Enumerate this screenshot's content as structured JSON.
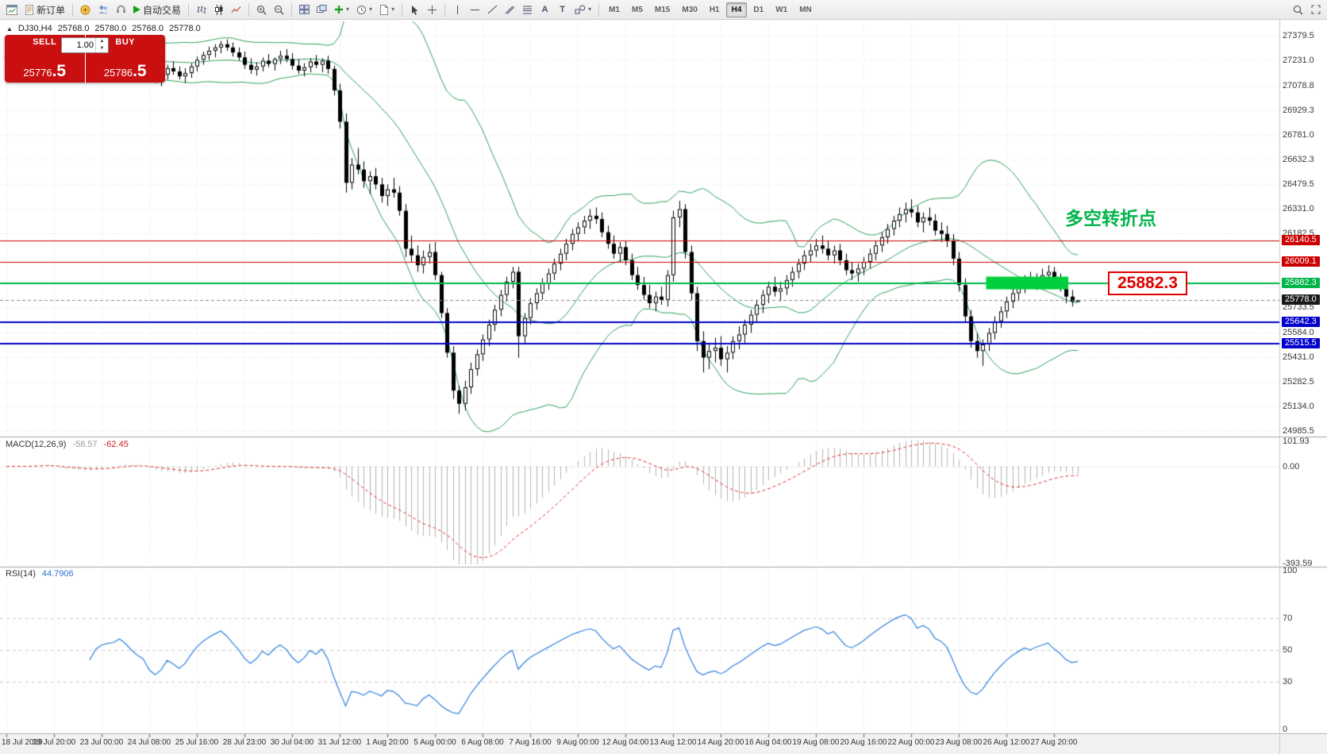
{
  "toolbar": {
    "new_order_label": "新订单",
    "autotrading_label": "自动交易",
    "timeframes": [
      "M1",
      "M5",
      "M15",
      "M30",
      "H1",
      "H4",
      "D1",
      "W1",
      "MN"
    ],
    "active_timeframe": "H4"
  },
  "symbol_info": {
    "symbol": "DJ30,H4",
    "open": "25768.0",
    "high": "25780.0",
    "low": "25768.0",
    "close": "25778.0"
  },
  "trade_panel": {
    "sell_label": "SELL",
    "buy_label": "BUY",
    "volume": "1.00",
    "sell_main": "25776",
    "sell_pips": ".5",
    "buy_main": "25786",
    "buy_pips": ".5"
  },
  "annotations": {
    "turning_point": "多空转折点",
    "price_callout": "25882.3"
  },
  "macd": {
    "name": "MACD(12,26,9)",
    "value1": "-58.57",
    "value2": "-62.45",
    "axis": [
      "101.93",
      "0.00",
      "-393.59"
    ]
  },
  "rsi": {
    "name": "RSI(14)",
    "value": "44.7906",
    "axis": [
      "100",
      "70",
      "50",
      "30",
      "0"
    ]
  },
  "chart_data": {
    "type": "candlestick",
    "symbol": "DJ30",
    "timeframe": "H4",
    "ylim": [
      24966,
      27468
    ],
    "current_price": 25778.0,
    "price_ticks": [
      "27379.5",
      "27231.0",
      "27078.8",
      "26929.3",
      "26781.0",
      "26632.3",
      "26479.5",
      "26331.0",
      "26182.5",
      "25733.5",
      "25584.0",
      "25431.0",
      "25282.5",
      "25134.0",
      "24985.5"
    ],
    "hlines": [
      {
        "price": 26140.5,
        "color": "#cc0000",
        "width": 1
      },
      {
        "price": 26009.1,
        "color": "#cc0000",
        "width": 1
      },
      {
        "price": 25882.3,
        "color": "#00b44a",
        "width": 2
      },
      {
        "price": 25642.3,
        "color": "#0000cc",
        "width": 2
      },
      {
        "price": 25515.5,
        "color": "#0000cc",
        "width": 2
      }
    ],
    "highlight_box": {
      "price": 25882.3,
      "from_bar": 165,
      "to_bar": 178,
      "color": "#00cf3d"
    },
    "bollinger": {
      "period": 20,
      "deviation": 2,
      "color": "#2fa35f"
    },
    "time_labels": [
      "18 Jul 2019",
      "19 Jul 20:00",
      "23 Jul 00:00",
      "24 Jul 08:00",
      "25 Jul 16:00",
      "28 Jul 23:00",
      "30 Jul 04:00",
      "31 Jul 12:00",
      "1 Aug 20:00",
      "5 Aug 00:00",
      "6 Aug 08:00",
      "7 Aug 16:00",
      "9 Aug 00:00",
      "12 Aug 04:00",
      "13 Aug 12:00",
      "14 Aug 20:00",
      "16 Aug 04:00",
      "19 Aug 08:00",
      "20 Aug 16:00",
      "22 Aug 00:00",
      "23 Aug 08:00",
      "26 Aug 12:00",
      "27 Aug 20:00"
    ],
    "bars_per_tick": 8,
    "candles": [
      [
        27240,
        27280,
        27200,
        27260
      ],
      [
        27260,
        27300,
        27230,
        27280
      ],
      [
        27280,
        27320,
        27250,
        27270
      ],
      [
        27270,
        27300,
        27220,
        27240
      ],
      [
        27240,
        27280,
        27210,
        27265
      ],
      [
        27265,
        27340,
        27245,
        27320
      ],
      [
        27320,
        27355,
        27285,
        27305
      ],
      [
        27305,
        27335,
        27265,
        27285
      ],
      [
        27285,
        27295,
        27170,
        27195
      ],
      [
        27195,
        27230,
        27130,
        27160
      ],
      [
        27160,
        27210,
        27120,
        27190
      ],
      [
        27190,
        27250,
        27165,
        27230
      ],
      [
        27230,
        27260,
        27185,
        27205
      ],
      [
        27205,
        27240,
        27150,
        27180
      ],
      [
        27180,
        27225,
        27140,
        27205
      ],
      [
        27205,
        27280,
        27180,
        27260
      ],
      [
        27260,
        27310,
        27230,
        27285
      ],
      [
        27285,
        27325,
        27255,
        27295
      ],
      [
        27295,
        27330,
        27260,
        27300
      ],
      [
        27300,
        27340,
        27270,
        27320
      ],
      [
        27320,
        27355,
        27280,
        27300
      ],
      [
        27300,
        27330,
        27250,
        27270
      ],
      [
        27270,
        27300,
        27215,
        27245
      ],
      [
        27245,
        27285,
        27205,
        27225
      ],
      [
        27225,
        27255,
        27135,
        27160
      ],
      [
        27160,
        27195,
        27095,
        27125
      ],
      [
        27125,
        27175,
        27075,
        27145
      ],
      [
        27145,
        27205,
        27115,
        27185
      ],
      [
        27185,
        27225,
        27145,
        27165
      ],
      [
        27165,
        27195,
        27115,
        27135
      ],
      [
        27135,
        27185,
        27095,
        27155
      ],
      [
        27155,
        27215,
        27125,
        27195
      ],
      [
        27195,
        27255,
        27165,
        27235
      ],
      [
        27235,
        27285,
        27205,
        27265
      ],
      [
        27265,
        27315,
        27235,
        27290
      ],
      [
        27290,
        27330,
        27250,
        27310
      ],
      [
        27310,
        27350,
        27275,
        27330
      ],
      [
        27330,
        27360,
        27290,
        27310
      ],
      [
        27310,
        27340,
        27255,
        27280
      ],
      [
        27280,
        27310,
        27230,
        27250
      ],
      [
        27250,
        27285,
        27180,
        27205
      ],
      [
        27205,
        27245,
        27150,
        27175
      ],
      [
        27175,
        27220,
        27140,
        27195
      ],
      [
        27195,
        27250,
        27165,
        27230
      ],
      [
        27230,
        27270,
        27190,
        27210
      ],
      [
        27210,
        27250,
        27170,
        27240
      ],
      [
        27240,
        27290,
        27210,
        27260
      ],
      [
        27260,
        27300,
        27220,
        27240
      ],
      [
        27240,
        27275,
        27175,
        27200
      ],
      [
        27200,
        27240,
        27150,
        27170
      ],
      [
        27170,
        27215,
        27135,
        27190
      ],
      [
        27190,
        27245,
        27160,
        27225
      ],
      [
        27225,
        27265,
        27185,
        27205
      ],
      [
        27205,
        27245,
        27160,
        27230
      ],
      [
        27230,
        27260,
        27150,
        27180
      ],
      [
        27180,
        27200,
        27020,
        27050
      ],
      [
        27050,
        27090,
        26820,
        26860
      ],
      [
        26860,
        26910,
        26430,
        26490
      ],
      [
        26490,
        26640,
        26450,
        26600
      ],
      [
        26600,
        26700,
        26540,
        26570
      ],
      [
        26570,
        26620,
        26460,
        26500
      ],
      [
        26500,
        26560,
        26420,
        26530
      ],
      [
        26530,
        26580,
        26450,
        26480
      ],
      [
        26480,
        26520,
        26370,
        26410
      ],
      [
        26410,
        26480,
        26350,
        26450
      ],
      [
        26450,
        26520,
        26400,
        26430
      ],
      [
        26430,
        26470,
        26290,
        26320
      ],
      [
        26320,
        26360,
        26040,
        26090
      ],
      [
        26090,
        26170,
        26010,
        26050
      ],
      [
        26050,
        26110,
        25950,
        25990
      ],
      [
        25990,
        26080,
        25940,
        26040
      ],
      [
        26040,
        26120,
        26000,
        26070
      ],
      [
        26070,
        26130,
        25900,
        25930
      ],
      [
        25930,
        25950,
        25670,
        25700
      ],
      [
        25700,
        25730,
        25430,
        25460
      ],
      [
        25460,
        25500,
        25180,
        25230
      ],
      [
        25230,
        25260,
        25090,
        25150
      ],
      [
        25150,
        25290,
        25110,
        25250
      ],
      [
        25250,
        25400,
        25210,
        25360
      ],
      [
        25360,
        25480,
        25320,
        25450
      ],
      [
        25450,
        25570,
        25410,
        25540
      ],
      [
        25540,
        25660,
        25500,
        25630
      ],
      [
        25630,
        25750,
        25590,
        25720
      ],
      [
        25720,
        25840,
        25680,
        25810
      ],
      [
        25810,
        25920,
        25770,
        25890
      ],
      [
        25890,
        25980,
        25850,
        25950
      ],
      [
        25950,
        25980,
        25430,
        25560
      ],
      [
        25560,
        25700,
        25520,
        25670
      ],
      [
        25670,
        25790,
        25630,
        25760
      ],
      [
        25760,
        25850,
        25720,
        25820
      ],
      [
        25820,
        25910,
        25780,
        25880
      ],
      [
        25880,
        25970,
        25840,
        25940
      ],
      [
        25940,
        26030,
        25900,
        26000
      ],
      [
        26000,
        26090,
        25960,
        26060
      ],
      [
        26060,
        26150,
        26020,
        26120
      ],
      [
        26120,
        26210,
        26080,
        26180
      ],
      [
        26180,
        26250,
        26140,
        26220
      ],
      [
        26220,
        26290,
        26180,
        26260
      ],
      [
        26260,
        26330,
        26210,
        26290
      ],
      [
        26290,
        26340,
        26240,
        26270
      ],
      [
        26270,
        26310,
        26160,
        26190
      ],
      [
        26190,
        26230,
        26090,
        26120
      ],
      [
        26120,
        26170,
        26030,
        26060
      ],
      [
        26060,
        26130,
        26010,
        26100
      ],
      [
        26100,
        26140,
        25990,
        26020
      ],
      [
        26020,
        26060,
        25900,
        25930
      ],
      [
        25930,
        25980,
        25840,
        25870
      ],
      [
        25870,
        25920,
        25780,
        25810
      ],
      [
        25810,
        25870,
        25730,
        25760
      ],
      [
        25760,
        25830,
        25710,
        25800
      ],
      [
        25800,
        25860,
        25750,
        25780
      ],
      [
        25780,
        25960,
        25740,
        25930
      ],
      [
        25930,
        26320,
        25890,
        26280
      ],
      [
        26280,
        26380,
        26220,
        26330
      ],
      [
        26330,
        26360,
        26030,
        26070
      ],
      [
        26070,
        26110,
        25780,
        25820
      ],
      [
        25820,
        25860,
        25470,
        25530
      ],
      [
        25530,
        25590,
        25340,
        25430
      ],
      [
        25430,
        25510,
        25360,
        25470
      ],
      [
        25470,
        25550,
        25400,
        25490
      ],
      [
        25490,
        25560,
        25380,
        25420
      ],
      [
        25420,
        25500,
        25340,
        25460
      ],
      [
        25460,
        25560,
        25420,
        25530
      ],
      [
        25530,
        25620,
        25480,
        25570
      ],
      [
        25570,
        25660,
        25520,
        25630
      ],
      [
        25630,
        25720,
        25580,
        25690
      ],
      [
        25690,
        25780,
        25640,
        25750
      ],
      [
        25750,
        25840,
        25700,
        25810
      ],
      [
        25810,
        25890,
        25760,
        25860
      ],
      [
        25860,
        25920,
        25800,
        25830
      ],
      [
        25830,
        25890,
        25770,
        25850
      ],
      [
        25850,
        25930,
        25810,
        25900
      ],
      [
        25900,
        25980,
        25860,
        25950
      ],
      [
        25950,
        26030,
        25910,
        26000
      ],
      [
        26000,
        26080,
        25960,
        26050
      ],
      [
        26050,
        26120,
        26010,
        26080
      ],
      [
        26080,
        26150,
        26040,
        26110
      ],
      [
        26110,
        26170,
        26060,
        26090
      ],
      [
        26090,
        26140,
        26020,
        26050
      ],
      [
        26050,
        26110,
        26000,
        26080
      ],
      [
        26080,
        26120,
        25990,
        26020
      ],
      [
        26020,
        26060,
        25930,
        25960
      ],
      [
        25960,
        26010,
        25900,
        25940
      ],
      [
        25940,
        26000,
        25890,
        25970
      ],
      [
        25970,
        26040,
        25930,
        26010
      ],
      [
        26010,
        26090,
        25970,
        26060
      ],
      [
        26060,
        26140,
        26020,
        26110
      ],
      [
        26110,
        26190,
        26070,
        26160
      ],
      [
        26160,
        26240,
        26120,
        26210
      ],
      [
        26210,
        26290,
        26170,
        26260
      ],
      [
        26260,
        26340,
        26220,
        26300
      ],
      [
        26300,
        26370,
        26250,
        26330
      ],
      [
        26330,
        26390,
        26280,
        26310
      ],
      [
        26310,
        26350,
        26220,
        26250
      ],
      [
        26250,
        26310,
        26190,
        26280
      ],
      [
        26280,
        26340,
        26230,
        26260
      ],
      [
        26260,
        26300,
        26170,
        26200
      ],
      [
        26200,
        26250,
        26130,
        26180
      ],
      [
        26180,
        26230,
        26100,
        26140
      ],
      [
        26140,
        26180,
        25990,
        26030
      ],
      [
        26030,
        26070,
        25830,
        25870
      ],
      [
        25870,
        25910,
        25640,
        25680
      ],
      [
        25680,
        25720,
        25490,
        25530
      ],
      [
        25530,
        25580,
        25430,
        25470
      ],
      [
        25470,
        25540,
        25380,
        25510
      ],
      [
        25510,
        25610,
        25470,
        25580
      ],
      [
        25580,
        25680,
        25540,
        25650
      ],
      [
        25650,
        25740,
        25610,
        25710
      ],
      [
        25710,
        25800,
        25670,
        25770
      ],
      [
        25770,
        25850,
        25730,
        25820
      ],
      [
        25820,
        25890,
        25780,
        25860
      ],
      [
        25860,
        25930,
        25820,
        25900
      ],
      [
        25900,
        25950,
        25850,
        25880
      ],
      [
        25880,
        25940,
        25840,
        25910
      ],
      [
        25910,
        25970,
        25870,
        25930
      ],
      [
        25930,
        25990,
        25880,
        25950
      ],
      [
        25950,
        25980,
        25870,
        25900
      ],
      [
        25900,
        25940,
        25830,
        25860
      ],
      [
        25860,
        25890,
        25760,
        25800
      ],
      [
        25800,
        25840,
        25740,
        25770
      ],
      [
        25768,
        25780,
        25768,
        25778
      ]
    ]
  }
}
